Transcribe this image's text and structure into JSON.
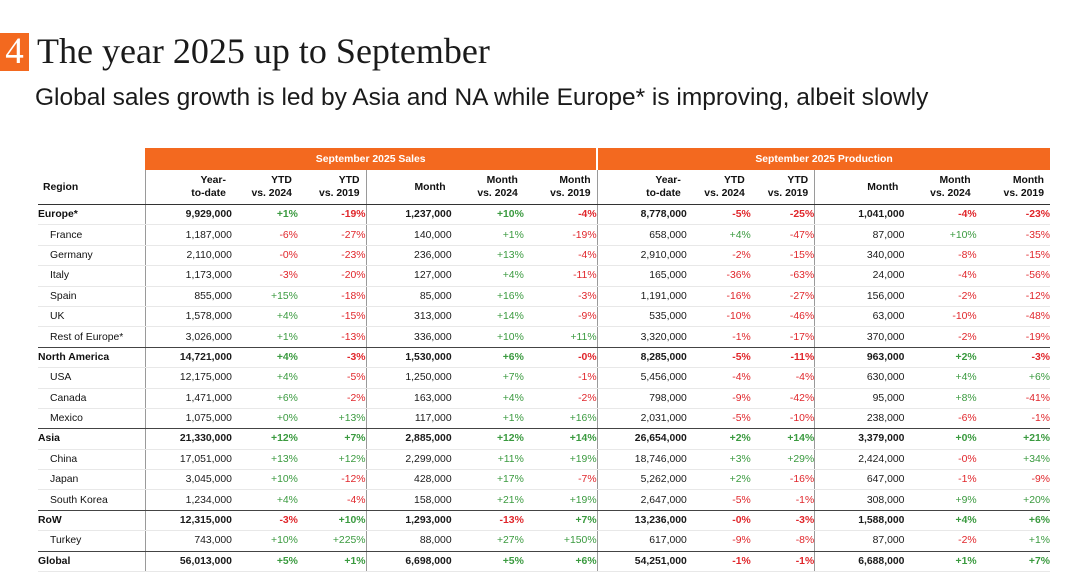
{
  "header": {
    "number": "4",
    "title": "The year 2025 up to September",
    "subtitle": "Global sales growth is led by Asia and NA while Europe* is improving, albeit slowly"
  },
  "colors": {
    "accent": "#f3691f",
    "positive": "#3a9a3f",
    "negative": "#e0262b"
  },
  "table": {
    "band_sales": "September 2025 Sales",
    "band_production": "September 2025 Production",
    "region_header": "Region",
    "columns": [
      [
        "Year-",
        "to-date"
      ],
      [
        "YTD",
        "vs. 2024"
      ],
      [
        "YTD",
        "vs. 2019"
      ],
      [
        "Month"
      ],
      [
        "Month",
        "vs. 2024"
      ],
      [
        "Month",
        "vs. 2019"
      ],
      [
        "Year-",
        "to-date"
      ],
      [
        "YTD",
        "vs. 2024"
      ],
      [
        "YTD",
        "vs. 2019"
      ],
      [
        "Month"
      ],
      [
        "Month",
        "vs. 2024"
      ],
      [
        "Month",
        "vs. 2019"
      ]
    ],
    "rows": [
      {
        "region": "Europe*",
        "kind": "group",
        "end": false,
        "values": [
          "9,929,000",
          "+1%",
          "-19%",
          "1,237,000",
          "+10%",
          "-4%",
          "8,778,000",
          "-5%",
          "-25%",
          "1,041,000",
          "-4%",
          "-23%"
        ]
      },
      {
        "region": "France",
        "kind": "sub",
        "end": false,
        "values": [
          "1,187,000",
          "-6%",
          "-27%",
          "140,000",
          "+1%",
          "-19%",
          "658,000",
          "+4%",
          "-47%",
          "87,000",
          "+10%",
          "-35%"
        ]
      },
      {
        "region": "Germany",
        "kind": "sub",
        "end": false,
        "values": [
          "2,110,000",
          "-0%",
          "-23%",
          "236,000",
          "+13%",
          "-4%",
          "2,910,000",
          "-2%",
          "-15%",
          "340,000",
          "-8%",
          "-15%"
        ]
      },
      {
        "region": "Italy",
        "kind": "sub",
        "end": false,
        "values": [
          "1,173,000",
          "-3%",
          "-20%",
          "127,000",
          "+4%",
          "-11%",
          "165,000",
          "-36%",
          "-63%",
          "24,000",
          "-4%",
          "-56%"
        ]
      },
      {
        "region": "Spain",
        "kind": "sub",
        "end": false,
        "values": [
          "855,000",
          "+15%",
          "-18%",
          "85,000",
          "+16%",
          "-3%",
          "1,191,000",
          "-16%",
          "-27%",
          "156,000",
          "-2%",
          "-12%"
        ]
      },
      {
        "region": "UK",
        "kind": "sub",
        "end": false,
        "values": [
          "1,578,000",
          "+4%",
          "-15%",
          "313,000",
          "+14%",
          "-9%",
          "535,000",
          "-10%",
          "-46%",
          "63,000",
          "-10%",
          "-48%"
        ]
      },
      {
        "region": "Rest of Europe*",
        "kind": "sub",
        "end": true,
        "values": [
          "3,026,000",
          "+1%",
          "-13%",
          "336,000",
          "+10%",
          "+11%",
          "3,320,000",
          "-1%",
          "-17%",
          "370,000",
          "-2%",
          "-19%"
        ]
      },
      {
        "region": "North America",
        "kind": "group",
        "end": false,
        "values": [
          "14,721,000",
          "+4%",
          "-3%",
          "1,530,000",
          "+6%",
          "-0%",
          "8,285,000",
          "-5%",
          "-11%",
          "963,000",
          "+2%",
          "-3%"
        ]
      },
      {
        "region": "USA",
        "kind": "sub",
        "end": false,
        "values": [
          "12,175,000",
          "+4%",
          "-5%",
          "1,250,000",
          "+7%",
          "-1%",
          "5,456,000",
          "-4%",
          "-4%",
          "630,000",
          "+4%",
          "+6%"
        ]
      },
      {
        "region": "Canada",
        "kind": "sub",
        "end": false,
        "values": [
          "1,471,000",
          "+6%",
          "-2%",
          "163,000",
          "+4%",
          "-2%",
          "798,000",
          "-9%",
          "-42%",
          "95,000",
          "+8%",
          "-41%"
        ]
      },
      {
        "region": "Mexico",
        "kind": "sub",
        "end": true,
        "values": [
          "1,075,000",
          "+0%",
          "+13%",
          "117,000",
          "+1%",
          "+16%",
          "2,031,000",
          "-5%",
          "-10%",
          "238,000",
          "-6%",
          "-1%"
        ]
      },
      {
        "region": "Asia",
        "kind": "group",
        "end": false,
        "values": [
          "21,330,000",
          "+12%",
          "+7%",
          "2,885,000",
          "+12%",
          "+14%",
          "26,654,000",
          "+2%",
          "+14%",
          "3,379,000",
          "+0%",
          "+21%"
        ]
      },
      {
        "region": "China",
        "kind": "sub",
        "end": false,
        "values": [
          "17,051,000",
          "+13%",
          "+12%",
          "2,299,000",
          "+11%",
          "+19%",
          "18,746,000",
          "+3%",
          "+29%",
          "2,424,000",
          "-0%",
          "+34%"
        ]
      },
      {
        "region": "Japan",
        "kind": "sub",
        "end": false,
        "values": [
          "3,045,000",
          "+10%",
          "-12%",
          "428,000",
          "+17%",
          "-7%",
          "5,262,000",
          "+2%",
          "-16%",
          "647,000",
          "-1%",
          "-9%"
        ]
      },
      {
        "region": "South Korea",
        "kind": "sub",
        "end": true,
        "values": [
          "1,234,000",
          "+4%",
          "-4%",
          "158,000",
          "+21%",
          "+19%",
          "2,647,000",
          "-5%",
          "-1%",
          "308,000",
          "+9%",
          "+20%"
        ]
      },
      {
        "region": "RoW",
        "kind": "group",
        "end": false,
        "values": [
          "12,315,000",
          "-3%",
          "+10%",
          "1,293,000",
          "-13%",
          "+7%",
          "13,236,000",
          "-0%",
          "-3%",
          "1,588,000",
          "+4%",
          "+6%"
        ]
      },
      {
        "region": "Turkey",
        "kind": "sub",
        "end": true,
        "values": [
          "743,000",
          "+10%",
          "+225%",
          "88,000",
          "+27%",
          "+150%",
          "617,000",
          "-9%",
          "-8%",
          "87,000",
          "-2%",
          "+1%"
        ]
      },
      {
        "region": "Global",
        "kind": "total",
        "end": false,
        "values": [
          "56,013,000",
          "+5%",
          "+1%",
          "6,698,000",
          "+5%",
          "+6%",
          "54,251,000",
          "-1%",
          "-1%",
          "6,688,000",
          "+1%",
          "+7%"
        ]
      }
    ]
  }
}
